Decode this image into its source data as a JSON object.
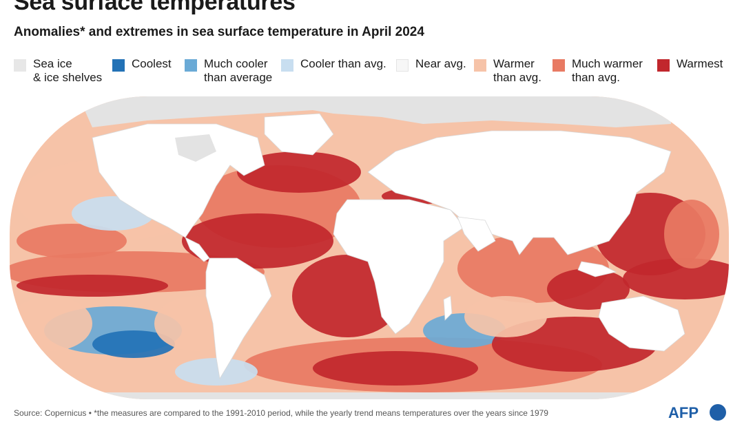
{
  "title": "Sea surface temperatures",
  "subtitle": "Anomalies* and extremes in sea surface temperature in April 2024",
  "legend": [
    {
      "line1": "Sea ice",
      "line2": "& ice shelves",
      "color": "#e7e7e7"
    },
    {
      "line1": "Coolest",
      "line2": "",
      "color": "#2372b6"
    },
    {
      "line1": "Much cooler",
      "line2": "than average",
      "color": "#6aaad6"
    },
    {
      "line1": "Cooler than avg.",
      "line2": "",
      "color": "#c8def0"
    },
    {
      "line1": "Near avg.",
      "line2": "",
      "color": "#f7f7f7"
    },
    {
      "line1": "Warmer",
      "line2": "than avg.",
      "color": "#f6c3a8"
    },
    {
      "line1": "Much warmer",
      "line2": "than avg.",
      "color": "#e87a63"
    },
    {
      "line1": "Warmest",
      "line2": "",
      "color": "#c1272d"
    }
  ],
  "colors": {
    "land": "#ffffff",
    "ice": "#e3e3e3",
    "near": "#f7f4f2",
    "warmer": "#f6c3a8",
    "much_warmer": "#e87a63",
    "warmest": "#c1272d",
    "cooler": "#c8def0",
    "much_cooler": "#6aaad6",
    "coolest": "#2372b6"
  },
  "source": "Source: Copernicus • *the measures are compared to the 1991-2010 period, while the yearly trend means temperatures over the years since 1979",
  "logo": "AFP",
  "logo_color": "#1f5fa8"
}
